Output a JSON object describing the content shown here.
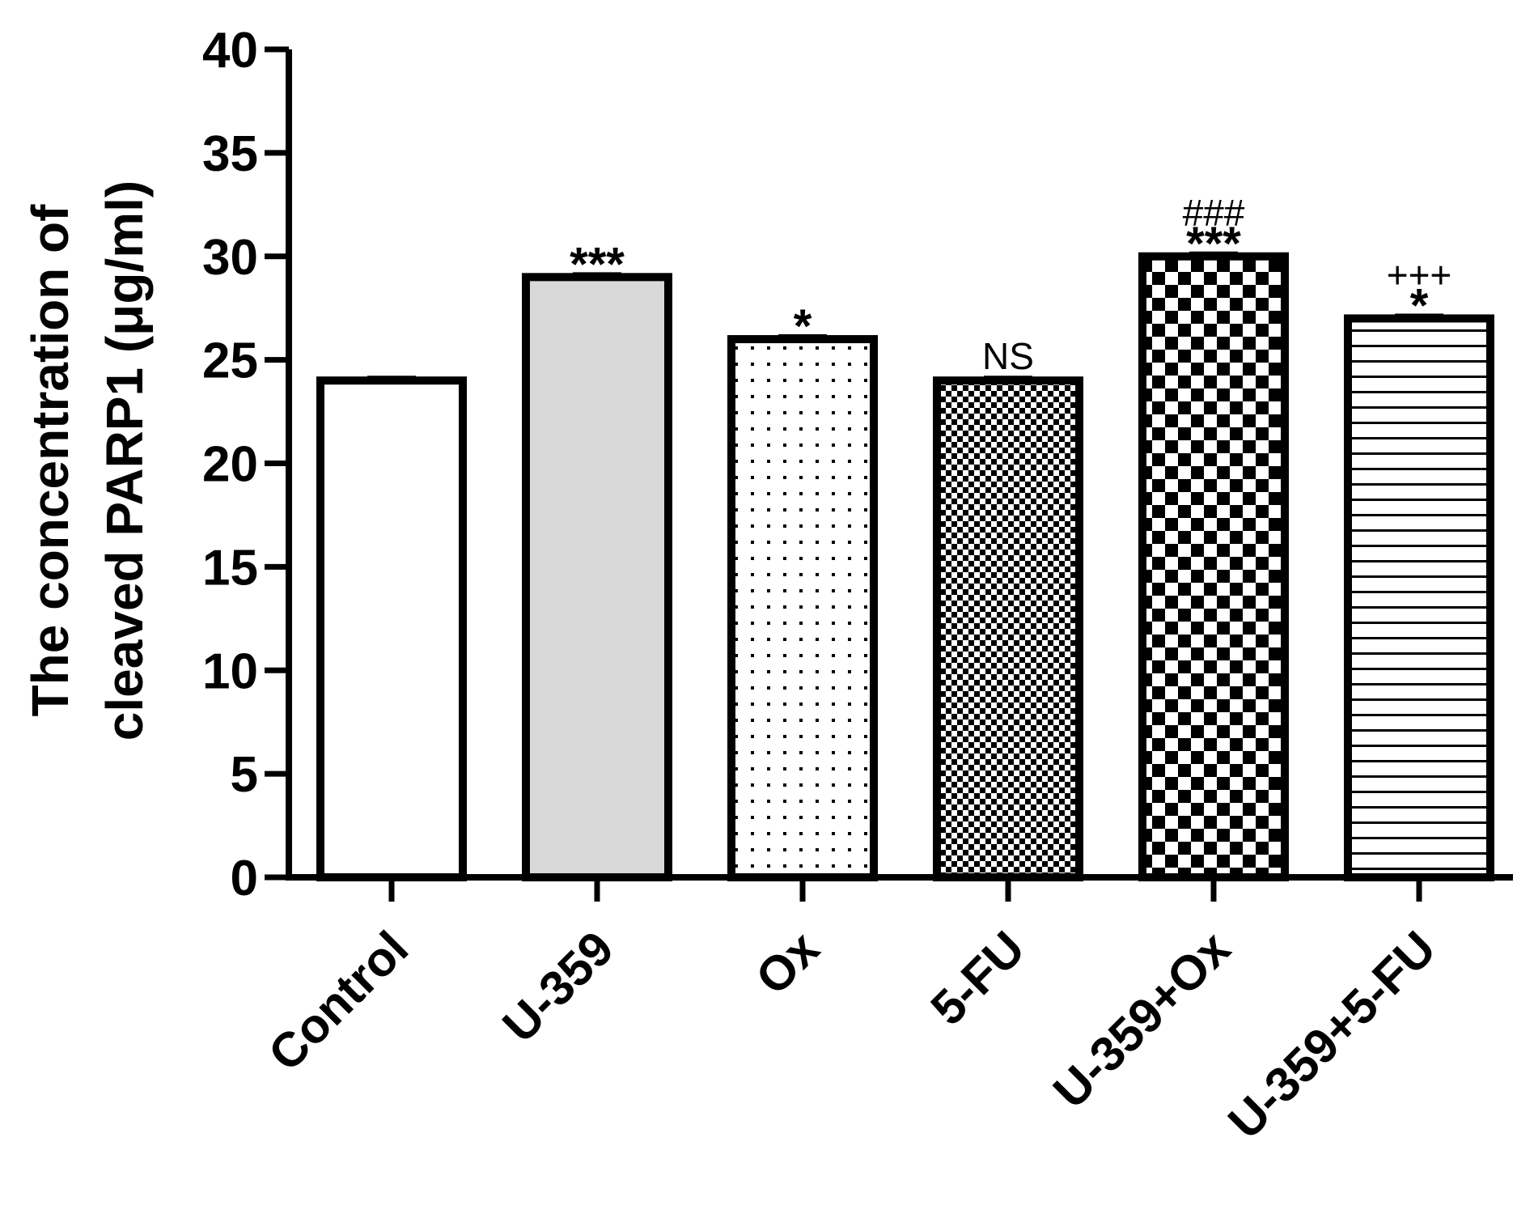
{
  "chart_data": {
    "type": "bar",
    "ylabel_lines": [
      "The concentration of",
      "cleaved PARP1 (μg/ml)"
    ],
    "xlabel": "",
    "ylim": [
      0,
      40
    ],
    "yticks": [
      0,
      5,
      10,
      15,
      20,
      25,
      30,
      35,
      40
    ],
    "ytick_labels": [
      "0",
      "5",
      "10",
      "15",
      "20",
      "25",
      "30",
      "35",
      "40"
    ],
    "grid": false,
    "categories": [
      "Control",
      "U-359",
      "Ox",
      "5-FU",
      "U-359+Ox",
      "U-359+5-FU"
    ],
    "values": [
      24,
      29,
      26,
      24,
      30,
      27
    ],
    "fill_patterns": [
      "white",
      "light-gray",
      "dots",
      "fine-checker",
      "large-checker",
      "horizontal-lines"
    ],
    "annotations": [
      {
        "category": "U-359",
        "lines": [
          "***"
        ]
      },
      {
        "category": "Ox",
        "lines": [
          "*"
        ]
      },
      {
        "category": "5-FU",
        "lines": [
          "NS"
        ]
      },
      {
        "category": "U-359+Ox",
        "lines": [
          "###",
          "***"
        ]
      },
      {
        "category": "U-359+5-FU",
        "lines": [
          "+++",
          "*"
        ]
      }
    ]
  }
}
